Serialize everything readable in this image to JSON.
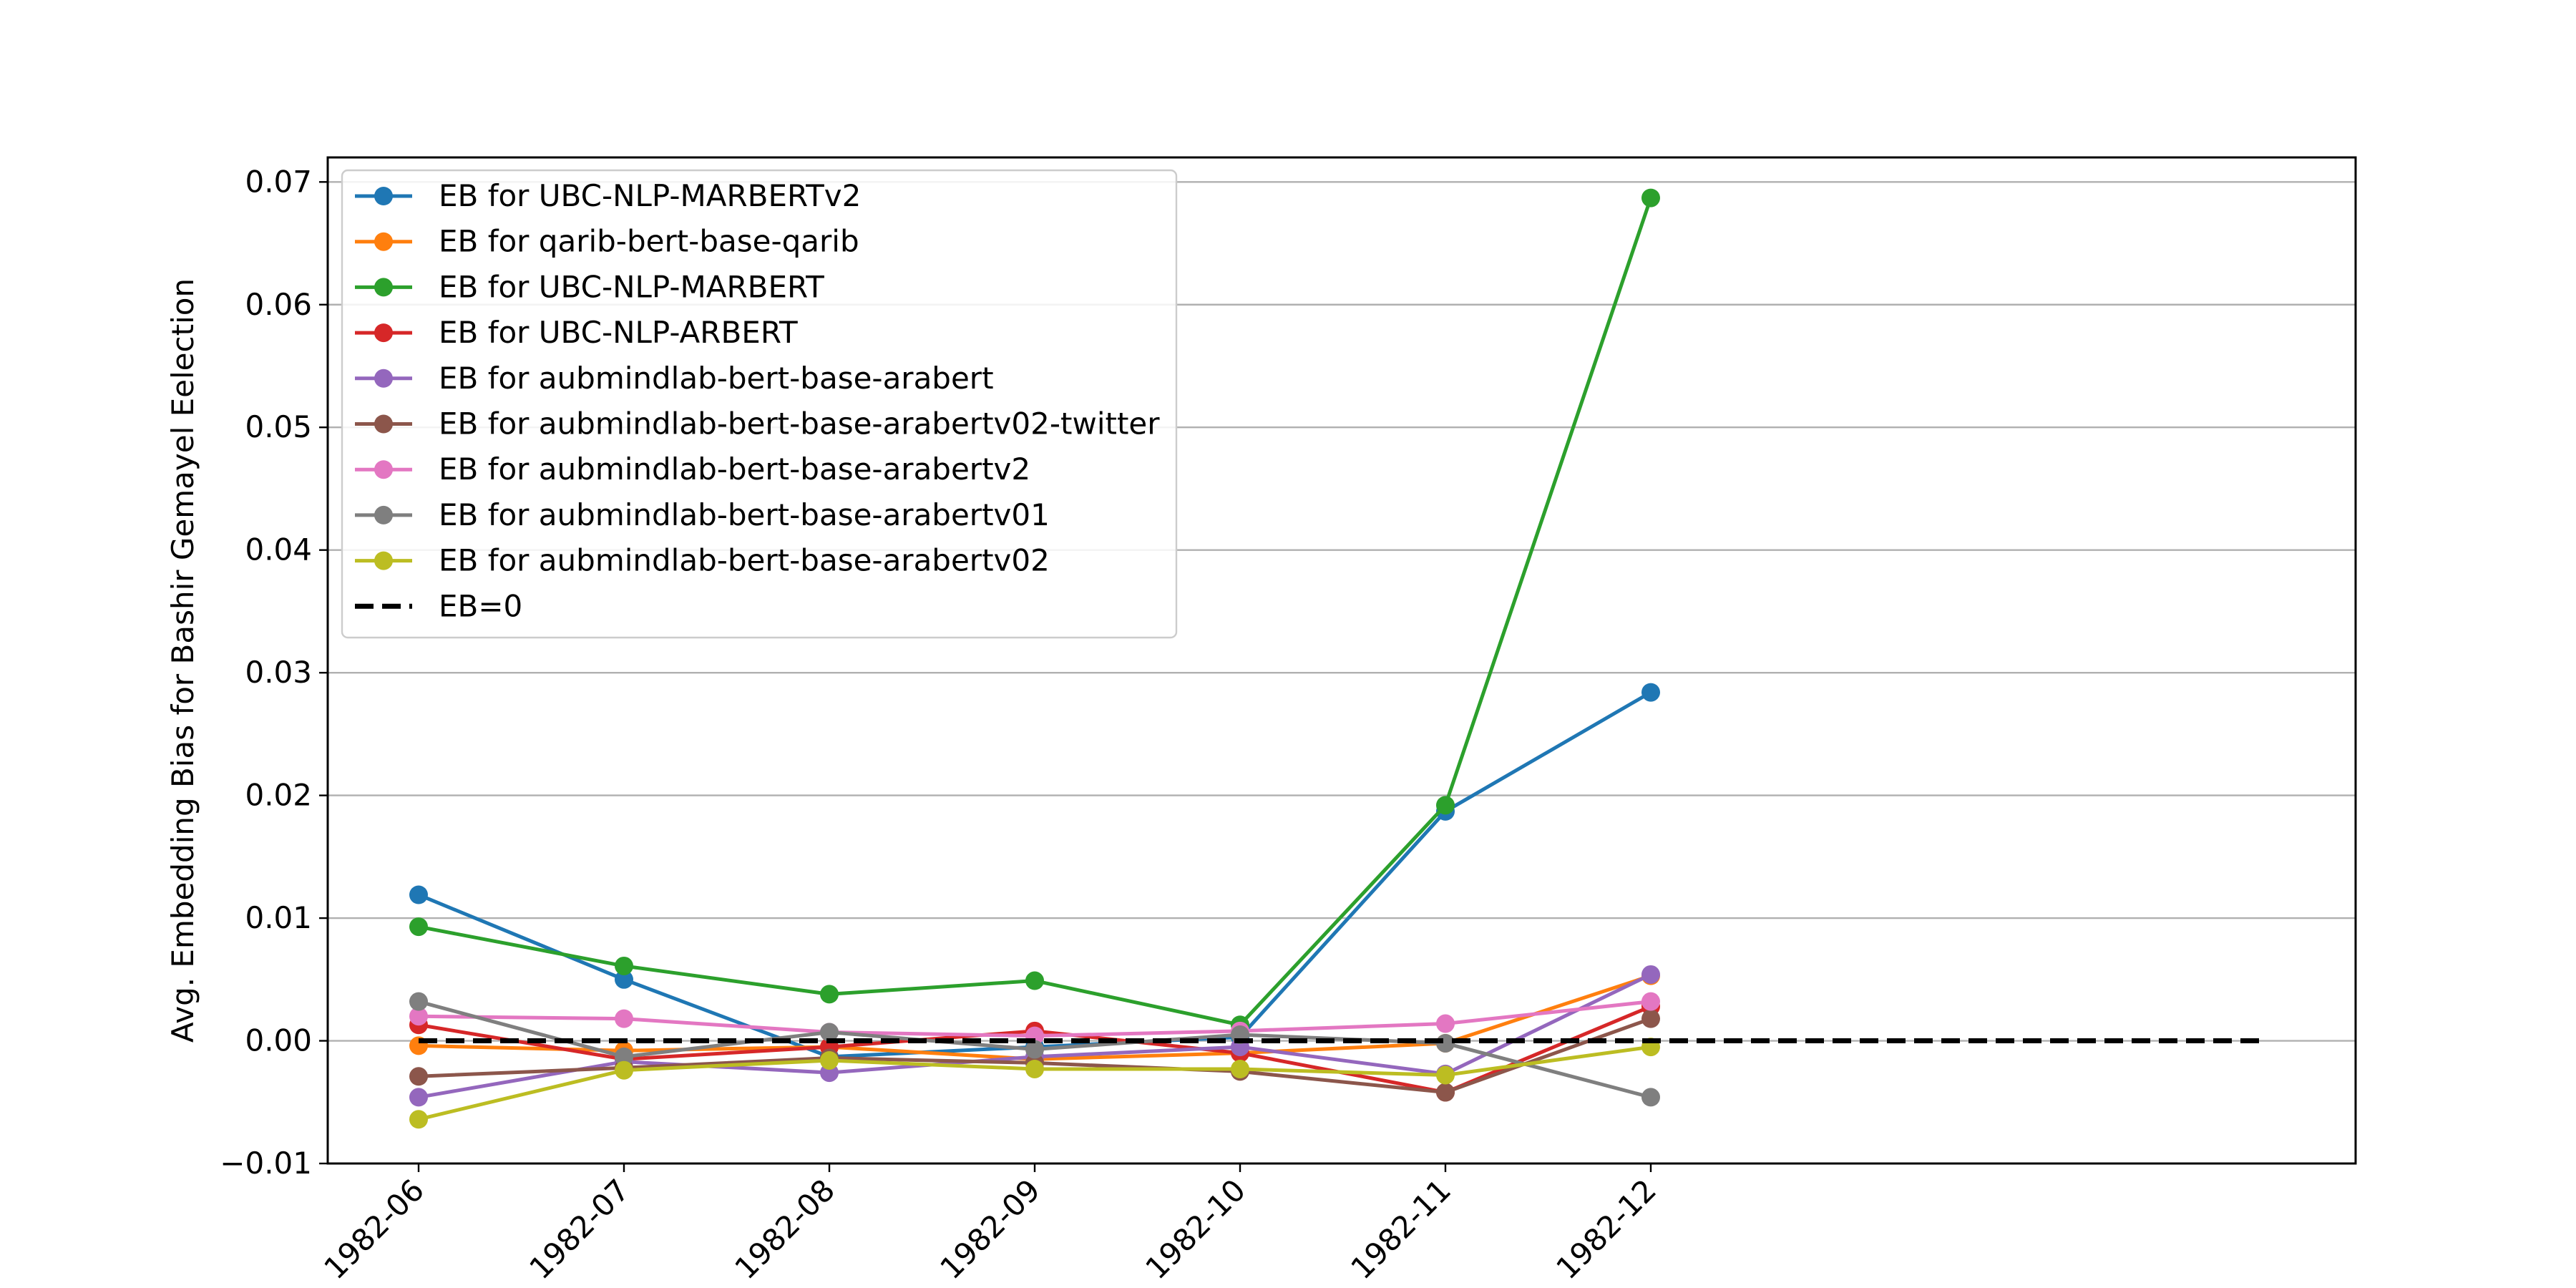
{
  "chart_data": {
    "type": "line",
    "title": "",
    "xlabel": "",
    "ylabel": "Avg. Embedding Bias for Bashir Gemayel Eelection",
    "x": [
      "1982-06",
      "1982-07",
      "1982-08",
      "1982-09",
      "1982-10",
      "1982-11",
      "1982-12"
    ],
    "ylim": [
      -0.01,
      0.072
    ],
    "yticks": [
      -0.01,
      0.0,
      0.01,
      0.02,
      0.03,
      0.04,
      0.05,
      0.06,
      0.07
    ],
    "ytick_labels": [
      "−0.01",
      "0.00",
      "0.01",
      "0.02",
      "0.03",
      "0.04",
      "0.05",
      "0.06",
      "0.07"
    ],
    "grid": "horizontal",
    "legend_position": "top-left",
    "series": [
      {
        "name": "EB for UBC-NLP-MARBERTv2",
        "color": "#1f77b4",
        "values": [
          0.0119,
          0.005,
          -0.0013,
          -0.0005,
          0.0003,
          0.0187,
          0.0284
        ]
      },
      {
        "name": "EB for qarib-bert-base-qarib",
        "color": "#ff7f0e",
        "values": [
          -0.0004,
          -0.0008,
          -0.0005,
          -0.0015,
          -0.001,
          -0.0002,
          0.0053
        ]
      },
      {
        "name": "EB for UBC-NLP-MARBERT",
        "color": "#2ca02c",
        "values": [
          0.0093,
          0.0061,
          0.0038,
          0.0049,
          0.0013,
          0.0192,
          0.0687
        ]
      },
      {
        "name": "EB for UBC-NLP-ARBERT",
        "color": "#d62728",
        "values": [
          0.0013,
          -0.0015,
          -0.0005,
          0.0008,
          -0.001,
          -0.0042,
          0.0028
        ]
      },
      {
        "name": "EB for aubmindlab-bert-base-arabert",
        "color": "#9467bd",
        "values": [
          -0.0046,
          -0.0017,
          -0.0026,
          -0.0013,
          -0.0005,
          -0.0027,
          0.0054
        ]
      },
      {
        "name": "EB for aubmindlab-bert-base-arabertv02-twitter",
        "color": "#8c564b",
        "values": [
          -0.0029,
          -0.0022,
          -0.0014,
          -0.0018,
          -0.0025,
          -0.0042,
          0.0018
        ]
      },
      {
        "name": "EB for aubmindlab-bert-base-arabertv2",
        "color": "#e377c2",
        "values": [
          0.002,
          0.0018,
          0.0007,
          0.0004,
          0.0008,
          0.0014,
          0.0032
        ]
      },
      {
        "name": "EB for aubmindlab-bert-base-arabertv01",
        "color": "#7f7f7f",
        "values": [
          0.0032,
          -0.0013,
          0.0007,
          -0.0007,
          0.0005,
          -0.0002,
          -0.0046
        ]
      },
      {
        "name": "EB for aubmindlab-bert-base-arabertv02",
        "color": "#bcbd22",
        "values": [
          -0.0064,
          -0.0024,
          -0.0016,
          -0.0023,
          -0.0023,
          -0.0028,
          -0.0005
        ]
      }
    ],
    "reference_line": {
      "name": "EB=0",
      "value": 0.0,
      "color": "#000000",
      "style": "dashed"
    }
  }
}
